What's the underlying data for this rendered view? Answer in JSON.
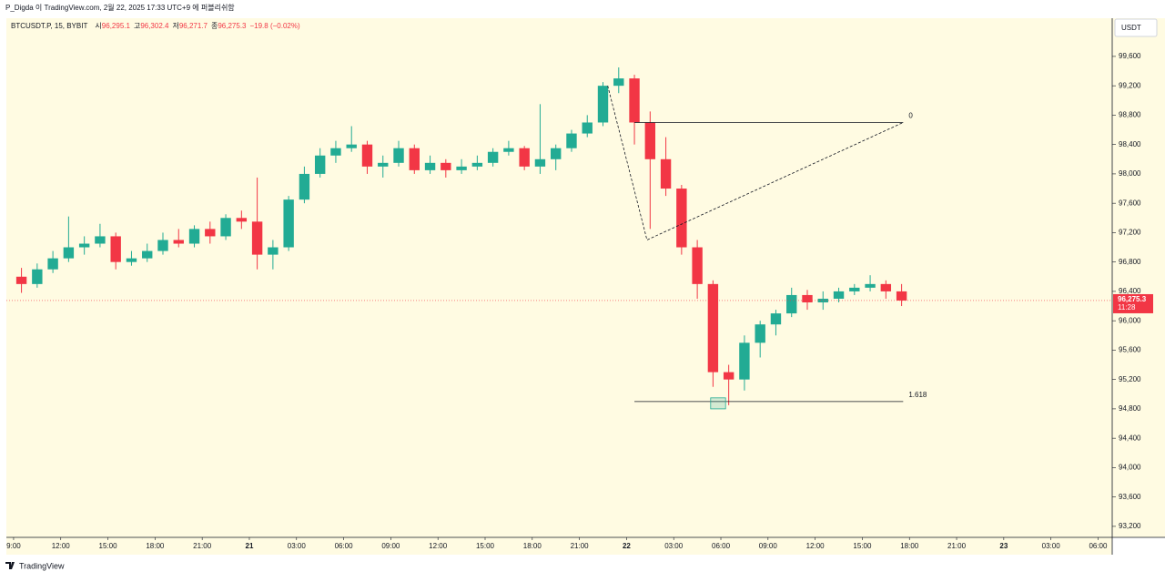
{
  "header": "P_Digda 이 TradingView.com, 2월 22, 2025 17:33 UTC+9 에 퍼블리쉬함",
  "footer": "TradingView",
  "chart_data": {
    "type": "candlestick",
    "symbol": "BTCUSDT.P, 15, BYBIT",
    "ohlc_header": [
      {
        "label": "시",
        "value": "96,295.1"
      },
      {
        "label": "고",
        "value": "96,302.4"
      },
      {
        "label": "저",
        "value": "96,271.7"
      },
      {
        "label": "종",
        "value": "96,275.3"
      }
    ],
    "change": "−19.8 (−0.02%)",
    "currency": "USDT",
    "last_price_label": "96,275.3",
    "countdown": "11:28",
    "up_color": "#22ab94",
    "down_color": "#f23645",
    "x": [
      9,
      10,
      11,
      12,
      13,
      14,
      15,
      16,
      17,
      18,
      19,
      20,
      21,
      22,
      23,
      24,
      25,
      26,
      27,
      28,
      29,
      30,
      31,
      32,
      33,
      34,
      35,
      36,
      37,
      38,
      39,
      40,
      41,
      42,
      43,
      44,
      45,
      46,
      47,
      48,
      49,
      50,
      51,
      52,
      53,
      54,
      55,
      56,
      57,
      58,
      59,
      60,
      61,
      62,
      63,
      64,
      65
    ],
    "open": [
      96600,
      96500,
      96700,
      96850,
      97000,
      97050,
      97150,
      96800,
      96850,
      96950,
      97100,
      97050,
      97250,
      97150,
      97400,
      97350,
      96900,
      97000,
      97650,
      98000,
      98250,
      98350,
      98400,
      98100,
      98150,
      98350,
      98050,
      98150,
      98050,
      98100,
      98150,
      98300,
      98350,
      98100,
      98200,
      98350,
      98550,
      98700,
      99200,
      99300,
      98700,
      98200,
      97800,
      97000,
      96500,
      95300,
      95200,
      95700,
      95950,
      96100,
      96350,
      96250,
      96300,
      96400,
      96450,
      96500,
      96400
    ],
    "high": [
      96720,
      96780,
      96950,
      97420,
      97150,
      97320,
      97200,
      96950,
      97050,
      97200,
      97250,
      97300,
      97350,
      97450,
      97500,
      97950,
      97100,
      97700,
      98100,
      98350,
      98450,
      98650,
      98450,
      98250,
      98450,
      98400,
      98250,
      98200,
      98200,
      98250,
      98350,
      98450,
      98380,
      98950,
      98400,
      98600,
      98800,
      99250,
      99450,
      99350,
      98850,
      98500,
      97850,
      97100,
      96550,
      95400,
      95800,
      96000,
      96150,
      96450,
      96420,
      96400,
      96450,
      96500,
      96620,
      96550,
      96500
    ],
    "low": [
      96380,
      96450,
      96650,
      96800,
      96900,
      97000,
      96700,
      96750,
      96800,
      96900,
      97000,
      97000,
      97050,
      97100,
      97250,
      96700,
      96700,
      96950,
      97600,
      97950,
      98150,
      98300,
      98000,
      97950,
      98100,
      98000,
      98000,
      97950,
      98000,
      98050,
      98100,
      98250,
      98050,
      98000,
      98050,
      98300,
      98500,
      98650,
      99100,
      98400,
      97250,
      97700,
      96900,
      96300,
      95100,
      94850,
      95050,
      95500,
      95800,
      96050,
      96150,
      96150,
      96250,
      96350,
      96400,
      96300,
      96200
    ],
    "close": [
      96500,
      96700,
      96850,
      97000,
      97050,
      97150,
      96800,
      96850,
      96950,
      97100,
      97050,
      97250,
      97150,
      97400,
      97350,
      96900,
      97000,
      97650,
      98000,
      98250,
      98350,
      98400,
      98100,
      98150,
      98350,
      98050,
      98150,
      98050,
      98100,
      98150,
      98300,
      98350,
      98100,
      98200,
      98350,
      98550,
      98700,
      99200,
      99300,
      98700,
      98200,
      97800,
      97000,
      96500,
      95300,
      95200,
      95700,
      95950,
      96100,
      96350,
      96250,
      96300,
      96400,
      96450,
      96500,
      96400,
      96275.3
    ],
    "xlim": [
      8.54,
      78.9
    ],
    "ylim": [
      93050,
      100120
    ],
    "xticks": [
      {
        "value": 9,
        "label": "9:00"
      },
      {
        "value": 12,
        "label": "12:00"
      },
      {
        "value": 15,
        "label": "15:00"
      },
      {
        "value": 18,
        "label": "18:00"
      },
      {
        "value": 21,
        "label": "21:00"
      },
      {
        "value": 24,
        "label": "21"
      },
      {
        "value": 27,
        "label": "03:00"
      },
      {
        "value": 30,
        "label": "06:00"
      },
      {
        "value": 33,
        "label": "09:00"
      },
      {
        "value": 36,
        "label": "12:00"
      },
      {
        "value": 39,
        "label": "15:00"
      },
      {
        "value": 42,
        "label": "18:00"
      },
      {
        "value": 45,
        "label": "21:00"
      },
      {
        "value": 48,
        "label": "22"
      },
      {
        "value": 51,
        "label": "03:00"
      },
      {
        "value": 54,
        "label": "06:00"
      },
      {
        "value": 57,
        "label": "09:00"
      },
      {
        "value": 60,
        "label": "12:00"
      },
      {
        "value": 63,
        "label": "15:00"
      },
      {
        "value": 66,
        "label": "18:00"
      },
      {
        "value": 69,
        "label": "21:00"
      },
      {
        "value": 72,
        "label": "23"
      },
      {
        "value": 75,
        "label": "03:00"
      },
      {
        "value": 78,
        "label": "06:00"
      }
    ],
    "yticks": [
      {
        "value": 93200,
        "label": "93,200"
      },
      {
        "value": 93600,
        "label": "93,600"
      },
      {
        "value": 94000,
        "label": "94,000"
      },
      {
        "value": 94400,
        "label": "94,400"
      },
      {
        "value": 94800,
        "label": "94,800"
      },
      {
        "value": 95200,
        "label": "95,200"
      },
      {
        "value": 95600,
        "label": "95,600"
      },
      {
        "value": 96000,
        "label": "96,000"
      },
      {
        "value": 96400,
        "label": "96,400"
      },
      {
        "value": 96800,
        "label": "96,800"
      },
      {
        "value": 97200,
        "label": "97,200"
      },
      {
        "value": 97600,
        "label": "97,600"
      },
      {
        "value": 98000,
        "label": "98,000"
      },
      {
        "value": 98400,
        "label": "98,400"
      },
      {
        "value": 98800,
        "label": "98,800"
      },
      {
        "value": 99200,
        "label": "99,200"
      },
      {
        "value": 99600,
        "label": "99,600"
      }
    ],
    "grid": false,
    "fib_levels": [
      {
        "label": "0",
        "price": 98700
      },
      {
        "label": "1.618",
        "price": 94900
      }
    ],
    "fib_x": [
      48.5,
      65.6
    ],
    "trend_x": [
      46.8,
      49.3,
      65.6
    ],
    "trend_y": [
      99200,
      97100,
      98700
    ],
    "box_x": [
      53.35,
      54.3
    ],
    "box_y": [
      94800,
      94950
    ]
  }
}
